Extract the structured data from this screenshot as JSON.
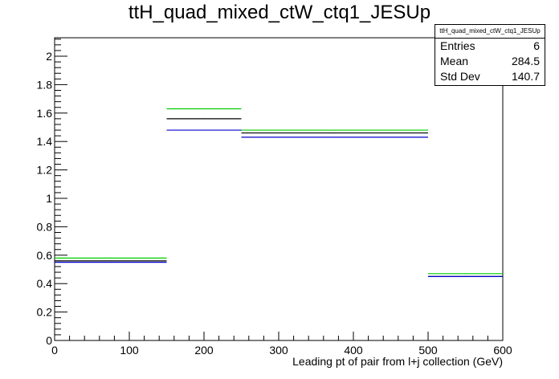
{
  "chart_data": {
    "type": "step",
    "title": "ttH_quad_mixed_ctW_ctq1_JESUp",
    "xlabel": "Leading pt of pair from l+j collection (GeV)",
    "ylabel": "",
    "xlim": [
      0,
      600
    ],
    "ylim": [
      0,
      2.13
    ],
    "x_ticks": [
      "0",
      "100",
      "200",
      "300",
      "400",
      "500",
      "600"
    ],
    "y_ticks": [
      "0",
      "0.2",
      "0.4",
      "0.6",
      "0.8",
      "1",
      "1.2",
      "1.4",
      "1.6",
      "1.8",
      "2"
    ],
    "bin_edges": [
      0,
      150,
      250,
      500,
      600
    ],
    "series": [
      {
        "color": "#00cc00",
        "values": [
          0.58,
          1.63,
          1.48,
          0.47
        ]
      },
      {
        "color": "#000000",
        "values": [
          0.56,
          1.56,
          1.46,
          0.45
        ]
      },
      {
        "color": "#0000cc",
        "values": [
          0.55,
          1.48,
          1.43,
          0.45
        ]
      }
    ],
    "stats": {
      "title": "ttH_quad_mixed_ctW_ctq1_JESUp",
      "rows": [
        {
          "label": "Entries",
          "value": "6"
        },
        {
          "label": "Mean",
          "value": "284.5"
        },
        {
          "label": "Std Dev",
          "value": "140.7"
        }
      ]
    },
    "grid": false,
    "legend": "none"
  }
}
